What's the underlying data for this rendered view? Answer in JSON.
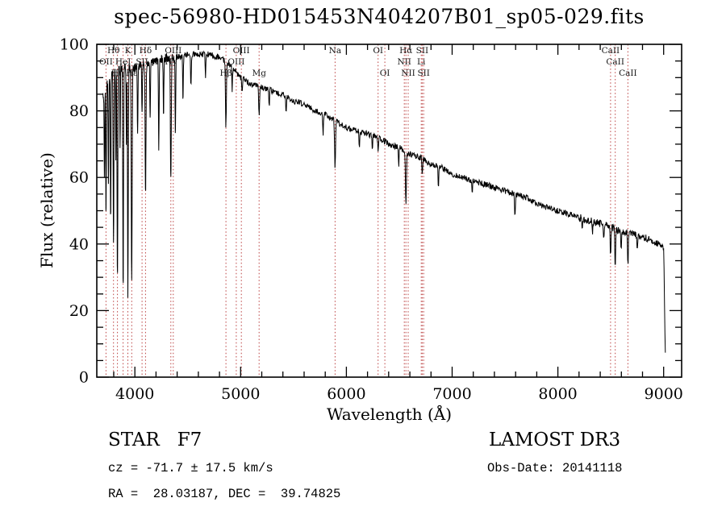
{
  "title": "spec-56980-HD015453N404207B01_sp05-029.fits",
  "footer": {
    "class_label": "STAR   F7",
    "survey": "LAMOST DR3",
    "cz": "cz = -71.7 ± 17.5 km/s",
    "obs_date": "Obs-Date: 20141118",
    "ra_dec": "RA =  28.03187, DEC =  39.74825"
  },
  "chart_data": {
    "type": "line",
    "title": "spec-56980-HD015453N404207B01_sp05-029.fits",
    "xlabel": "Wavelength (Å)",
    "ylabel": "Flux (relative)",
    "xlim": [
      3640,
      9170
    ],
    "ylim": [
      0,
      100
    ],
    "x_ticks": [
      "4000",
      "5000",
      "6000",
      "7000",
      "8000",
      "9000"
    ],
    "x_tick_values": [
      4000,
      5000,
      6000,
      7000,
      8000,
      9000
    ],
    "x_minor_step": 200,
    "y_ticks": [
      "0",
      "20",
      "40",
      "60",
      "80",
      "100"
    ],
    "y_tick_values": [
      0,
      20,
      40,
      60,
      80,
      100
    ],
    "y_minor_step": 5,
    "grid": false,
    "spectrum_color": "#000000",
    "marker_line_color": "#bb4040",
    "marker_label_color": "#161616",
    "noise_amplitude": 0.9,
    "continuum": [
      [
        3695,
        84
      ],
      [
        3720,
        87
      ],
      [
        3750,
        89
      ],
      [
        3780,
        91
      ],
      [
        3810,
        92
      ],
      [
        3850,
        93
      ],
      [
        3900,
        93
      ],
      [
        3950,
        93
      ],
      [
        4000,
        93
      ],
      [
        4100,
        94
      ],
      [
        4200,
        95
      ],
      [
        4300,
        96
      ],
      [
        4400,
        96
      ],
      [
        4500,
        97
      ],
      [
        4600,
        97
      ],
      [
        4700,
        97
      ],
      [
        4800,
        96
      ],
      [
        4900,
        94
      ],
      [
        5000,
        90
      ],
      [
        5100,
        88
      ],
      [
        5200,
        87
      ],
      [
        5300,
        86
      ],
      [
        5400,
        85
      ],
      [
        5500,
        83
      ],
      [
        5600,
        82
      ],
      [
        5700,
        80
      ],
      [
        5800,
        79
      ],
      [
        5900,
        77
      ],
      [
        6000,
        75
      ],
      [
        6100,
        74
      ],
      [
        6200,
        73
      ],
      [
        6300,
        72
      ],
      [
        6400,
        70
      ],
      [
        6500,
        69
      ],
      [
        6600,
        67
      ],
      [
        6700,
        66
      ],
      [
        6800,
        64
      ],
      [
        6900,
        63
      ],
      [
        7000,
        61
      ],
      [
        7100,
        60
      ],
      [
        7200,
        59
      ],
      [
        7300,
        58
      ],
      [
        7400,
        57
      ],
      [
        7500,
        56
      ],
      [
        7600,
        55
      ],
      [
        7700,
        54
      ],
      [
        7800,
        52
      ],
      [
        7900,
        51
      ],
      [
        8000,
        50
      ],
      [
        8100,
        49
      ],
      [
        8200,
        48
      ],
      [
        8300,
        47
      ],
      [
        8400,
        46
      ],
      [
        8500,
        45
      ],
      [
        8600,
        44
      ],
      [
        8700,
        43
      ],
      [
        8800,
        42
      ],
      [
        8900,
        41
      ],
      [
        8960,
        40
      ],
      [
        9000,
        39
      ],
      [
        9006,
        28
      ],
      [
        9012,
        12
      ],
      [
        9018,
        4
      ]
    ],
    "absorption_lines": [
      [
        3712,
        60,
        3
      ],
      [
        3727,
        48,
        3
      ],
      [
        3750,
        57,
        3
      ],
      [
        3771,
        46,
        3
      ],
      [
        3798,
        40,
        3.5
      ],
      [
        3820,
        66,
        2.5
      ],
      [
        3835,
        30,
        3.5
      ],
      [
        3860,
        68,
        2.5
      ],
      [
        3889,
        27,
        3.5
      ],
      [
        3920,
        70,
        2.5
      ],
      [
        3934,
        25,
        3.5
      ],
      [
        3970,
        28,
        4
      ],
      [
        4026,
        73,
        3
      ],
      [
        4068,
        79,
        3
      ],
      [
        4101,
        56,
        4
      ],
      [
        4144,
        77,
        3
      ],
      [
        4226,
        69,
        3
      ],
      [
        4271,
        79,
        3
      ],
      [
        4340,
        59,
        4
      ],
      [
        4383,
        73,
        3
      ],
      [
        4455,
        83,
        3
      ],
      [
        4530,
        87,
        3
      ],
      [
        4668,
        90,
        3
      ],
      [
        4861,
        75,
        4
      ],
      [
        4920,
        86,
        3
      ],
      [
        5015,
        85,
        3
      ],
      [
        5175,
        79,
        4
      ],
      [
        5270,
        81,
        3
      ],
      [
        5430,
        79,
        3
      ],
      [
        5780,
        72,
        3
      ],
      [
        5893,
        63,
        4.5
      ],
      [
        6122,
        69,
        3
      ],
      [
        6245,
        68,
        3
      ],
      [
        6300,
        67,
        3
      ],
      [
        6495,
        63,
        3
      ],
      [
        6563,
        51,
        4
      ],
      [
        6717,
        61,
        3
      ],
      [
        6870,
        57,
        3.5
      ],
      [
        7190,
        55,
        3
      ],
      [
        7594,
        49,
        4
      ],
      [
        7680,
        54,
        3
      ],
      [
        8230,
        44,
        3
      ],
      [
        8327,
        43,
        3
      ],
      [
        8434,
        41,
        3
      ],
      [
        8498,
        36,
        3.5
      ],
      [
        8542,
        32,
        3.5
      ],
      [
        8598,
        39,
        3
      ],
      [
        8662,
        33,
        3.5
      ],
      [
        8750,
        37,
        3
      ]
    ],
    "line_markers": [
      {
        "label": "OII",
        "wl": 3727,
        "row": 2
      },
      {
        "label": "Hθ",
        "wl": 3798,
        "row": 1
      },
      {
        "label": "Hη",
        "wl": 3835,
        "row": 3
      },
      {
        "label": "HeI",
        "wl": 3889,
        "row": 2
      },
      {
        "label": "K",
        "wl": 3934,
        "row": 1
      },
      {
        "label": "Hε",
        "wl": 3970,
        "row": 3
      },
      {
        "label": "SII",
        "wl": 4068,
        "row": 2
      },
      {
        "label": "Hδ",
        "wl": 4101,
        "row": 1
      },
      {
        "label": "Hγ",
        "wl": 4340,
        "row": 2
      },
      {
        "label": "OIII",
        "wl": 4363,
        "row": 1
      },
      {
        "label": "Hβ",
        "wl": 4861,
        "row": 3
      },
      {
        "label": "OIII",
        "wl": 4959,
        "row": 2
      },
      {
        "label": "OIII",
        "wl": 5007,
        "row": 1
      },
      {
        "label": "Mg",
        "wl": 5175,
        "row": 3
      },
      {
        "label": "Na",
        "wl": 5893,
        "row": 1
      },
      {
        "label": "OI",
        "wl": 6300,
        "row": 1
      },
      {
        "label": "OI",
        "wl": 6364,
        "row": 3
      },
      {
        "label": "NII",
        "wl": 6548,
        "row": 2
      },
      {
        "label": "Hα",
        "wl": 6563,
        "row": 1
      },
      {
        "label": "NII",
        "wl": 6584,
        "row": 3
      },
      {
        "label": "Li",
        "wl": 6708,
        "row": 2
      },
      {
        "label": "SII",
        "wl": 6717,
        "row": 1
      },
      {
        "label": "SII",
        "wl": 6731,
        "row": 3
      },
      {
        "label": "CaII",
        "wl": 8498,
        "row": 1
      },
      {
        "label": "CaII",
        "wl": 8542,
        "row": 2
      },
      {
        "label": "CaII",
        "wl": 8662,
        "row": 3
      }
    ]
  }
}
